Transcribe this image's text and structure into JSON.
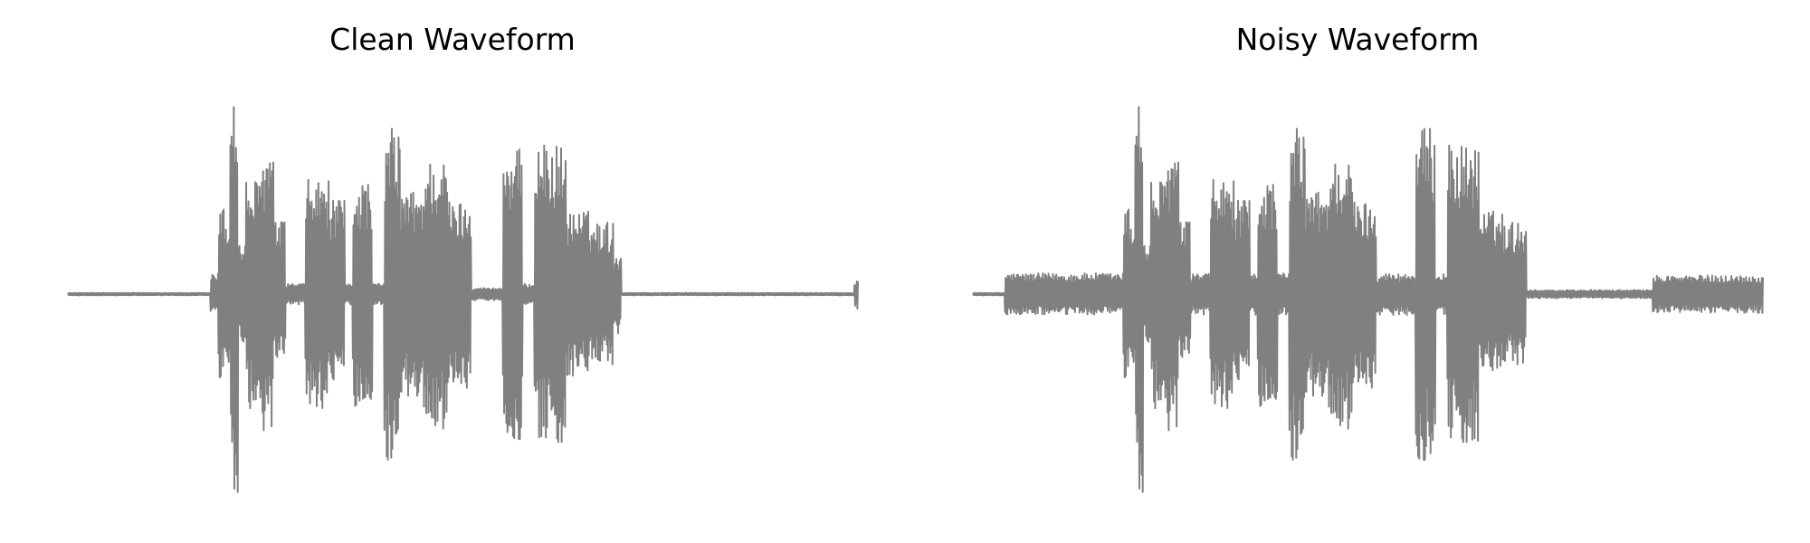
{
  "style": {
    "waveform_color": "#808080",
    "background": "#ffffff",
    "axes_visible": false
  },
  "chart_data": [
    {
      "type": "line",
      "title": "Clean Waveform",
      "xlabel": "",
      "ylabel": "",
      "xlim": [
        0,
        1
      ],
      "ylim": [
        -1,
        1
      ],
      "series": [
        {
          "segments": [
            {
              "from": 0.0,
              "to": 0.18,
              "amp": 0.006
            },
            {
              "from": 0.18,
              "to": 0.19,
              "amp": 0.1
            },
            {
              "from": 0.19,
              "to": 0.2,
              "amp": 0.42
            },
            {
              "from": 0.2,
              "to": 0.205,
              "amp": 0.35
            },
            {
              "from": 0.205,
              "to": 0.215,
              "amp": 1.0
            },
            {
              "from": 0.215,
              "to": 0.225,
              "amp": 0.25
            },
            {
              "from": 0.225,
              "to": 0.245,
              "amp": 0.55
            },
            {
              "from": 0.245,
              "to": 0.26,
              "amp": 0.7
            },
            {
              "from": 0.26,
              "to": 0.275,
              "amp": 0.35
            },
            {
              "from": 0.275,
              "to": 0.3,
              "amp": 0.05
            },
            {
              "from": 0.3,
              "to": 0.33,
              "amp": 0.55
            },
            {
              "from": 0.33,
              "to": 0.35,
              "amp": 0.45
            },
            {
              "from": 0.35,
              "to": 0.36,
              "amp": 0.05
            },
            {
              "from": 0.36,
              "to": 0.385,
              "amp": 0.55
            },
            {
              "from": 0.385,
              "to": 0.4,
              "amp": 0.05
            },
            {
              "from": 0.4,
              "to": 0.42,
              "amp": 0.8
            },
            {
              "from": 0.42,
              "to": 0.45,
              "amp": 0.5
            },
            {
              "from": 0.45,
              "to": 0.48,
              "amp": 0.65
            },
            {
              "from": 0.48,
              "to": 0.51,
              "amp": 0.45
            },
            {
              "from": 0.51,
              "to": 0.55,
              "amp": 0.03
            },
            {
              "from": 0.55,
              "to": 0.575,
              "amp": 0.7
            },
            {
              "from": 0.575,
              "to": 0.59,
              "amp": 0.05
            },
            {
              "from": 0.59,
              "to": 0.63,
              "amp": 0.72
            },
            {
              "from": 0.63,
              "to": 0.66,
              "amp": 0.4
            },
            {
              "from": 0.66,
              "to": 0.69,
              "amp": 0.35
            },
            {
              "from": 0.69,
              "to": 0.7,
              "amp": 0.2
            },
            {
              "from": 0.7,
              "to": 0.995,
              "amp": 0.006
            },
            {
              "from": 0.995,
              "to": 1.0,
              "amp": 0.07
            }
          ]
        }
      ]
    },
    {
      "type": "line",
      "title": "Noisy Waveform",
      "xlabel": "",
      "ylabel": "",
      "xlim": [
        0,
        1
      ],
      "ylim": [
        -1,
        1
      ],
      "series": [
        {
          "segments": [
            {
              "from": 0.0,
              "to": 0.04,
              "amp": 0.006
            },
            {
              "from": 0.04,
              "to": 0.19,
              "amp": 0.1
            },
            {
              "from": 0.19,
              "to": 0.2,
              "amp": 0.42
            },
            {
              "from": 0.2,
              "to": 0.205,
              "amp": 0.35
            },
            {
              "from": 0.205,
              "to": 0.215,
              "amp": 1.0
            },
            {
              "from": 0.215,
              "to": 0.225,
              "amp": 0.25
            },
            {
              "from": 0.225,
              "to": 0.245,
              "amp": 0.55
            },
            {
              "from": 0.245,
              "to": 0.26,
              "amp": 0.7
            },
            {
              "from": 0.26,
              "to": 0.275,
              "amp": 0.35
            },
            {
              "from": 0.275,
              "to": 0.3,
              "amp": 0.1
            },
            {
              "from": 0.3,
              "to": 0.33,
              "amp": 0.55
            },
            {
              "from": 0.33,
              "to": 0.35,
              "amp": 0.45
            },
            {
              "from": 0.35,
              "to": 0.36,
              "amp": 0.1
            },
            {
              "from": 0.36,
              "to": 0.385,
              "amp": 0.55
            },
            {
              "from": 0.385,
              "to": 0.4,
              "amp": 0.1
            },
            {
              "from": 0.4,
              "to": 0.42,
              "amp": 0.8
            },
            {
              "from": 0.42,
              "to": 0.45,
              "amp": 0.5
            },
            {
              "from": 0.45,
              "to": 0.48,
              "amp": 0.65
            },
            {
              "from": 0.48,
              "to": 0.51,
              "amp": 0.45
            },
            {
              "from": 0.51,
              "to": 0.56,
              "amp": 0.1
            },
            {
              "from": 0.56,
              "to": 0.585,
              "amp": 0.8
            },
            {
              "from": 0.585,
              "to": 0.6,
              "amp": 0.1
            },
            {
              "from": 0.6,
              "to": 0.64,
              "amp": 0.72
            },
            {
              "from": 0.64,
              "to": 0.67,
              "amp": 0.4
            },
            {
              "from": 0.67,
              "to": 0.7,
              "amp": 0.35
            },
            {
              "from": 0.7,
              "to": 0.86,
              "amp": 0.02
            },
            {
              "from": 0.86,
              "to": 1.0,
              "amp": 0.09
            }
          ]
        }
      ]
    }
  ]
}
